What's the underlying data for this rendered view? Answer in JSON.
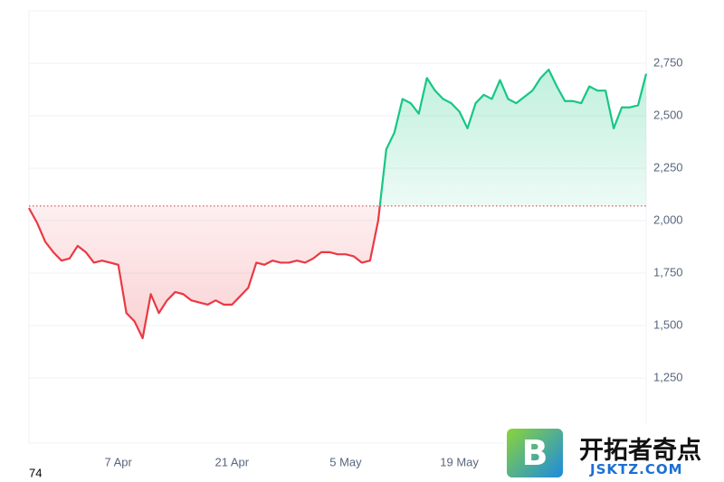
{
  "chart_data": {
    "type": "line",
    "categories": [
      null,
      null,
      null,
      null,
      null,
      null,
      null,
      null,
      null,
      null,
      null,
      "7 Apr",
      null,
      null,
      null,
      null,
      null,
      null,
      null,
      null,
      null,
      null,
      null,
      null,
      null,
      "21 Apr",
      null,
      null,
      null,
      null,
      null,
      null,
      null,
      null,
      null,
      null,
      null,
      null,
      null,
      "5 May",
      null,
      null,
      null,
      null,
      null,
      null,
      null,
      null,
      null,
      null,
      null,
      null,
      null,
      "19 May",
      null,
      null,
      null,
      null,
      null,
      null,
      null,
      null,
      null,
      null,
      null,
      null,
      null,
      null,
      null,
      null,
      null,
      null,
      null,
      null,
      null,
      null,
      null
    ],
    "values": [
      2060,
      1990,
      1900,
      1850,
      1810,
      1820,
      1880,
      1850,
      1800,
      1810,
      1800,
      1790,
      1560,
      1520,
      1440,
      1650,
      1560,
      1620,
      1660,
      1650,
      1620,
      1610,
      1600,
      1620,
      1600,
      1600,
      1640,
      1680,
      1800,
      1790,
      1810,
      1800,
      1800,
      1810,
      1800,
      1820,
      1850,
      1850,
      1840,
      1840,
      1830,
      1800,
      1810,
      2000,
      2340,
      2420,
      2580,
      2560,
      2510,
      2680,
      2620,
      2580,
      2560,
      2520,
      2440,
      2560,
      2600,
      2580,
      2670,
      2580,
      2560,
      2590,
      2620,
      2680,
      2720,
      2640,
      2570,
      2570,
      2560,
      2640,
      2620,
      2620,
      2440,
      2540,
      2540,
      2550,
      2700
    ],
    "baseline": 2070,
    "colors": {
      "up": "#16c784",
      "down": "#ea3943"
    },
    "ylim": [
      940,
      3000
    ],
    "yticks": [
      {
        "value": 1250,
        "label": "1,250"
      },
      {
        "value": 1500,
        "label": "1,500"
      },
      {
        "value": 1750,
        "label": "1,750"
      },
      {
        "value": 2000,
        "label": "2,000"
      },
      {
        "value": 2250,
        "label": "2,250"
      },
      {
        "value": 2500,
        "label": "2,500"
      },
      {
        "value": 2750,
        "label": "2,750"
      }
    ],
    "grid": true,
    "corner_label": "74"
  },
  "watermark": {
    "logo": "B",
    "title": "开拓者奇点",
    "url": "JSKTZ.COM"
  }
}
